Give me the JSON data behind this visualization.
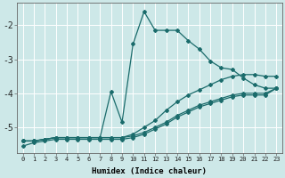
{
  "xlabel": "Humidex (Indice chaleur)",
  "bg_color": "#cde8e8",
  "line_color": "#1a6b6b",
  "grid_color": "#ffffff",
  "xlim": [
    -0.5,
    23.5
  ],
  "ylim": [
    -5.75,
    -1.35
  ],
  "yticks": [
    -5,
    -4,
    -3,
    -2
  ],
  "xticks": [
    0,
    1,
    2,
    3,
    4,
    5,
    6,
    7,
    8,
    9,
    10,
    11,
    12,
    13,
    14,
    15,
    16,
    17,
    18,
    19,
    20,
    21,
    22,
    23
  ],
  "lines": [
    {
      "x": [
        0,
        1,
        2,
        3,
        4,
        5,
        6,
        7,
        8,
        9,
        10,
        11,
        12,
        13,
        14,
        15,
        16,
        17,
        18,
        19,
        20,
        21,
        22,
        23
      ],
      "y": [
        -5.4,
        -5.4,
        -5.35,
        -5.3,
        -5.3,
        -5.3,
        -5.3,
        -5.3,
        -3.95,
        -4.85,
        -2.55,
        -1.6,
        -2.15,
        -2.15,
        -2.15,
        -2.45,
        -2.7,
        -3.05,
        -3.25,
        -3.3,
        -3.55,
        -3.75,
        -3.85,
        -3.85
      ]
    },
    {
      "x": [
        0,
        1,
        2,
        3,
        4,
        5,
        6,
        7,
        8,
        9,
        10,
        11,
        12,
        13,
        14,
        15,
        16,
        17,
        18,
        19,
        20,
        21,
        22,
        23
      ],
      "y": [
        -5.4,
        -5.4,
        -5.35,
        -5.3,
        -5.3,
        -5.3,
        -5.3,
        -5.3,
        -5.3,
        -5.3,
        -5.2,
        -5.0,
        -4.8,
        -4.5,
        -4.25,
        -4.05,
        -3.9,
        -3.75,
        -3.6,
        -3.5,
        -3.45,
        -3.45,
        -3.5,
        -3.5
      ]
    },
    {
      "x": [
        0,
        1,
        2,
        3,
        4,
        5,
        6,
        7,
        8,
        9,
        10,
        11,
        12,
        13,
        14,
        15,
        16,
        17,
        18,
        19,
        20,
        21,
        22,
        23
      ],
      "y": [
        -5.4,
        -5.4,
        -5.35,
        -5.3,
        -5.3,
        -5.3,
        -5.3,
        -5.3,
        -5.3,
        -5.3,
        -5.25,
        -5.15,
        -5.0,
        -4.85,
        -4.65,
        -4.5,
        -4.35,
        -4.25,
        -4.15,
        -4.05,
        -4.0,
        -4.0,
        -4.0,
        -3.85
      ]
    },
    {
      "x": [
        0,
        1,
        2,
        3,
        4,
        5,
        6,
        7,
        8,
        9,
        10,
        11,
        12,
        13,
        14,
        15,
        16,
        17,
        18,
        19,
        20,
        21,
        22,
        23
      ],
      "y": [
        -5.55,
        -5.45,
        -5.4,
        -5.35,
        -5.35,
        -5.35,
        -5.35,
        -5.35,
        -5.35,
        -5.35,
        -5.3,
        -5.2,
        -5.05,
        -4.9,
        -4.7,
        -4.55,
        -4.4,
        -4.3,
        -4.2,
        -4.1,
        -4.05,
        -4.05,
        -4.05,
        -3.85
      ]
    }
  ]
}
